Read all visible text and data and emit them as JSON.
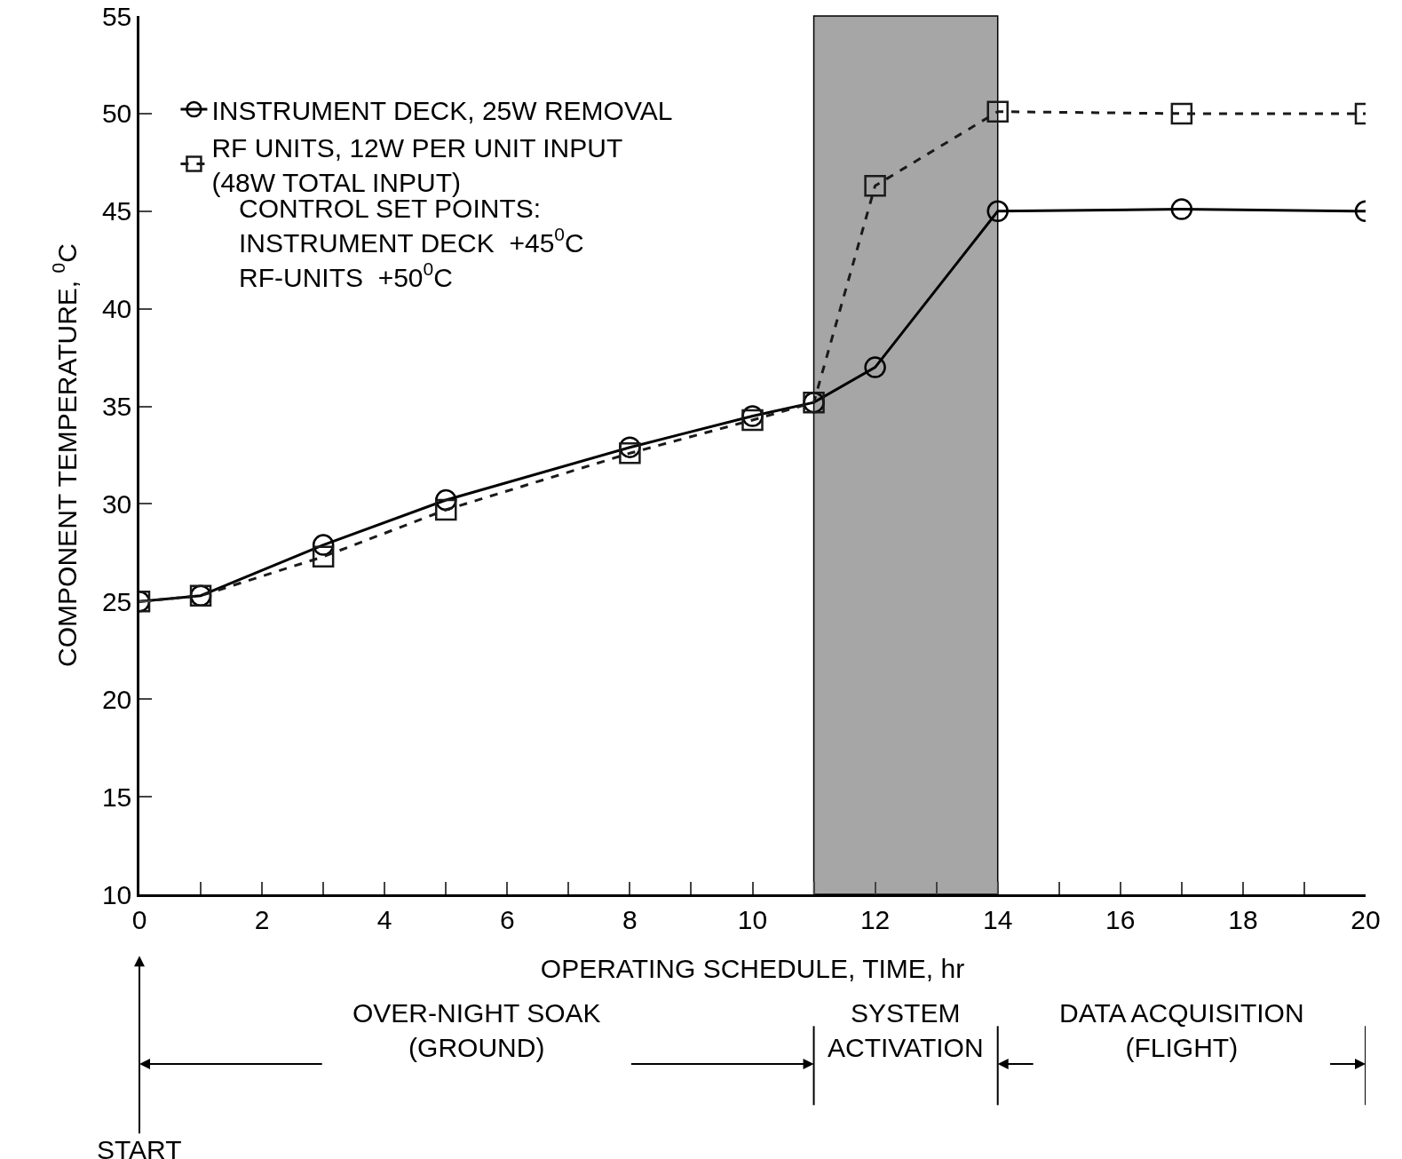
{
  "chart_data": {
    "type": "line",
    "xlabel": "OPERATING SCHEDULE, TIME, hr",
    "ylabel": "COMPONENT TEMPERATURE, $^{0}$C",
    "x": [
      0,
      1,
      3,
      5,
      8,
      10,
      11,
      12,
      14,
      17,
      20
    ],
    "series": [
      {
        "name": "INSTRUMENT DECK, 25W REMOVAL",
        "color": "#000000",
        "marker": "circle",
        "line_style": "solid",
        "values": [
          25,
          25.3,
          27.9,
          30.2,
          32.9,
          34.5,
          35.2,
          37,
          45,
          45.1,
          45
        ]
      },
      {
        "name": "RF UNITS, 12W PER UNIT INPUT\n(48W TOTAL INPUT)",
        "color": "#1a1a1a",
        "marker": "square",
        "line_style": "dashed",
        "values": [
          25,
          25.3,
          27.3,
          29.7,
          32.6,
          34.3,
          35.2,
          46.3,
          50.1,
          50,
          50
        ]
      }
    ],
    "xlim": [
      0,
      20
    ],
    "xticks": [
      0,
      {
        "value": 1,
        "label": null
      },
      2,
      {
        "value": 3,
        "label": null
      },
      4,
      {
        "value": 5,
        "label": null
      },
      6,
      {
        "value": 7,
        "label": null
      },
      8,
      {
        "value": 9,
        "label": null
      },
      10,
      {
        "value": 11,
        "label": null
      },
      12,
      {
        "value": 13,
        "label": null
      },
      14,
      {
        "value": 15,
        "label": null
      },
      16,
      {
        "value": 17,
        "label": null
      },
      18,
      {
        "value": 19,
        "label": null
      },
      20
    ],
    "ylim": [
      10,
      55
    ],
    "yticks": [
      10,
      15,
      20,
      25,
      30,
      35,
      40,
      45,
      50,
      55
    ],
    "bands": [
      {
        "axis": "x",
        "from": 11,
        "to": 14,
        "color": "#a6a6a6"
      }
    ],
    "annotations": [
      "OVER-NIGHT SOAK\n(GROUND)",
      "SYSTEM\nACTIVATION",
      "DATA ACQUISITION\n(FLIGHT)",
      "START",
      "CONTROL SET POINTS:\nINSTRUMENT DECK  +45$^{0}$C\nRF-UNITS  +50$^{0}$C"
    ],
    "legend": "top left",
    "grid": false
  }
}
